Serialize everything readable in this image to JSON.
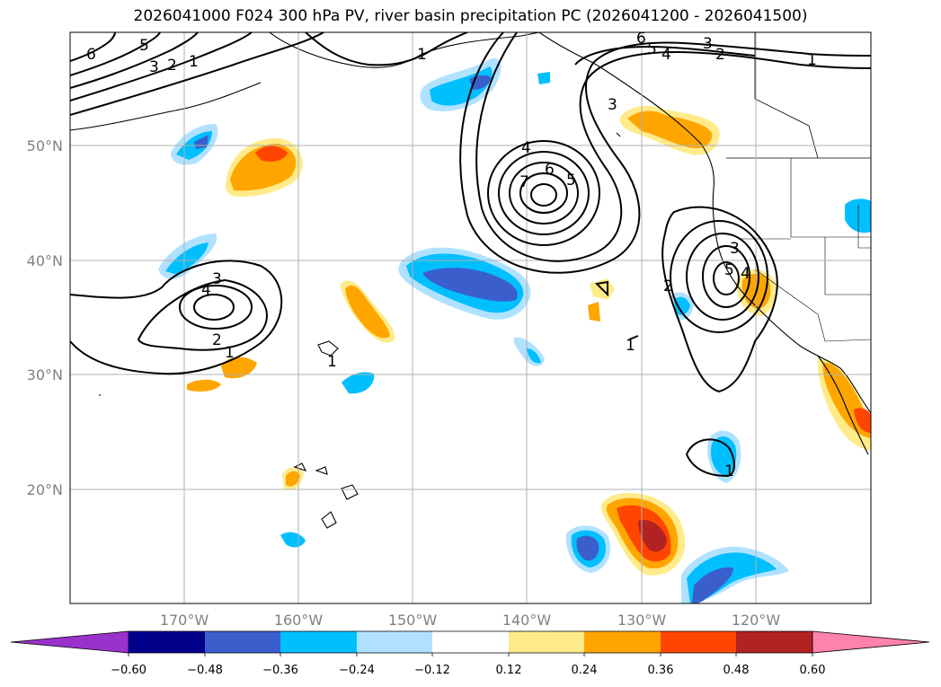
{
  "title": "2026041000 F024 300 hPa PV, river basin precipitation PC (2026041200 - 2026041500)",
  "lat_labels": [
    "50°N",
    "40°N",
    "30°N",
    "20°N"
  ],
  "lon_labels": [
    "170°W",
    "160°W",
    "150°W",
    "140°W",
    "130°W",
    "120°W"
  ],
  "colorbar": {
    "ticks": [
      "−0.60",
      "−0.48",
      "−0.36",
      "−0.24",
      "−0.12",
      "0.12",
      "0.24",
      "0.36",
      "0.48",
      "0.60"
    ],
    "colors": [
      "#9932cc",
      "#00008b",
      "#3a5fcd",
      "#00bfff",
      "#b0e2ff",
      "#ffffff",
      "#ffeb8a",
      "#ffa500",
      "#ff4500",
      "#b22222",
      "#ff82ab"
    ]
  },
  "pv_contour_labels": [
    "1",
    "2",
    "3",
    "4",
    "5",
    "6",
    "7"
  ],
  "colors": {
    "land_outline": "#000000",
    "grid": "#b0b0b0"
  }
}
